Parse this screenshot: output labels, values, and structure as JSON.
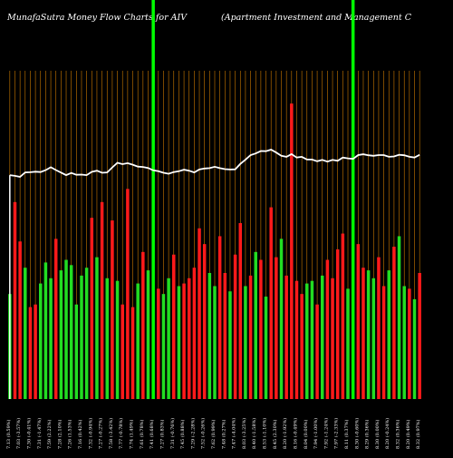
{
  "chart_data": {
    "type": "bar",
    "title": "MunafaSutra  Money Flow  Charts for AIV",
    "subtitle": "(Apartment Investment and Management C",
    "xlabel": "",
    "ylabel": "",
    "grid": true,
    "categories": [
      "7.13 (0.59%)",
      "7.09 (0.81%)",
      "7.03 (-3.57%)",
      "7.29 (-0.14%)",
      "7.30 (-0.41%)",
      "7.33 (0.27%)",
      "7.31 (-1.47%)",
      "7.42 (-2.28%)",
      "7.59 (2.22%)",
      "7.43 (1.97%)",
      "7.28 (2.10%)",
      "7.13 (-1.79%)",
      "7.26 (1.53%)",
      "7.15 (-0.14%)",
      "7.16 (0.42%)",
      "7.13 (-2.56%)",
      "7.32 (-0.94%)",
      "7.39 (1.65%)",
      "7.27 (-0.27%)",
      "7.29 (-3.89%)",
      "7.58 (-3.42%)",
      "7.85 (1.09%)",
      "7.77 (-0.78%)",
      "7.83 (1.16%)",
      "7.74 (1.49%)",
      "7.63 (0.26%)",
      "7.61 (0.78%)",
      "7.55 (1.89%)",
      "7.41 (0.68%)",
      "7.36 (1.24%)",
      "7.27 (0.83%)",
      "7.21 (-1.31%)",
      "7.31 (-0.76%)",
      "7.36 (-1.21%)",
      "7.45 (0.88%)",
      "7.39 (1.37%)",
      "7.29 (-2.28%)",
      "7.46 (-0.80%)",
      "7.52 (-0.26%)",
      "7.54 (-1.05%)",
      "7.62 (0.99%)",
      "7.54 (0.80%)",
      "7.48 (0.27%)",
      "7.46 (-0.12%)",
      "7.47 (-4.04%)",
      "7.79 (-2.98%)",
      "8.03 (-3.25%)",
      "8.30 (-1.20%)",
      "8.40 (-1.58%)",
      "8.54 (0.11%)",
      "8.53 (-1.10%)",
      "8.62 (2.01%)",
      "8.45 (2.30%)",
      "8.26 (0.73%)",
      "8.20 (-1.92%)",
      "8.36 (2.45%)",
      "8.16 (-0.49%)",
      "8.20 (1.99%)",
      "8.04 (0.00%)",
      "8.04 (1.26%)",
      "7.94 (-1.00%)",
      "8.02 (1.24%)",
      "7.92 (-1.24%)",
      "8.02 (0.63%)",
      "7.97 (-2.33%)",
      "8.16 (0.62%)",
      "8.11 (0.37%)",
      "8.08 (-2.65%)",
      "8.30 (-0.60%)",
      "8.35 (0.72%)",
      "8.29 (0.36%)",
      "8.26 (-0.48%)",
      "8.30 (0.00%)",
      "8.30 (1.22%)",
      "8.20 (-0.24%)",
      "8.22 (-1.20%)",
      "8.32 (0.36%)",
      "8.29 (1.10%)",
      "8.20 (0.49%)",
      "8.16 (-1.93%)",
      "8.32 (0.97%)"
    ],
    "bar_colors": [
      "green",
      "red",
      "red",
      "green",
      "red",
      "red",
      "green",
      "green",
      "green",
      "red",
      "green",
      "green",
      "green",
      "green",
      "green",
      "green",
      "red",
      "green",
      "red",
      "green",
      "red",
      "green",
      "red",
      "red",
      "red",
      "green",
      "red",
      "green",
      "red",
      "red",
      "green",
      "green",
      "red",
      "green",
      "red",
      "red",
      "red",
      "red",
      "red",
      "green",
      "green",
      "red",
      "red",
      "green",
      "red",
      "red",
      "green",
      "red",
      "green",
      "red",
      "green",
      "red",
      "red",
      "green",
      "red",
      "green",
      "red",
      "red",
      "green",
      "green",
      "red",
      "green",
      "red",
      "red",
      "red",
      "red",
      "green",
      "green",
      "red",
      "red",
      "green",
      "green",
      "red",
      "red",
      "green",
      "red",
      "green",
      "green",
      "red",
      "green",
      "red"
    ],
    "values": [
      4.0,
      7.5,
      6.0,
      5.0,
      3.5,
      3.6,
      4.4,
      5.2,
      4.6,
      6.1,
      4.9,
      5.3,
      5.1,
      3.6,
      4.7,
      5.0,
      6.9,
      5.4,
      7.5,
      4.6,
      6.8,
      4.5,
      3.6,
      8.0,
      3.5,
      4.4,
      5.6,
      4.9,
      5.8,
      4.2,
      4.0,
      4.6,
      5.5,
      4.3,
      4.4,
      4.6,
      5.0,
      6.5,
      5.9,
      4.8,
      4.3,
      6.2,
      4.8,
      4.1,
      5.5,
      6.7,
      4.3,
      4.7,
      5.6,
      5.3,
      3.9,
      7.3,
      5.4,
      6.1,
      4.7,
      4.1,
      4.5,
      4.0,
      4.4,
      4.5,
      3.6,
      4.7,
      5.3,
      4.6,
      5.7,
      6.3,
      4.2,
      3.9,
      5.9,
      5.0,
      4.9,
      4.6,
      5.4,
      4.3,
      4.9,
      5.8,
      6.2,
      4.3,
      4.2,
      3.8,
      4.8
    ],
    "highlight_bars": [
      {
        "index": 28,
        "color": "green",
        "value": 10.0
      },
      {
        "index": 55,
        "color": "red",
        "value": 9.0
      },
      {
        "index": 67,
        "color": "green",
        "value": 10.0
      }
    ],
    "price_line": [
      7.13,
      7.09,
      7.03,
      7.29,
      7.3,
      7.33,
      7.31,
      7.42,
      7.59,
      7.43,
      7.28,
      7.13,
      7.26,
      7.15,
      7.16,
      7.13,
      7.32,
      7.39,
      7.27,
      7.29,
      7.58,
      7.85,
      7.77,
      7.83,
      7.74,
      7.63,
      7.61,
      7.55,
      7.41,
      7.36,
      7.27,
      7.21,
      7.31,
      7.36,
      7.45,
      7.39,
      7.29,
      7.46,
      7.52,
      7.54,
      7.62,
      7.54,
      7.48,
      7.46,
      7.47,
      7.79,
      8.03,
      8.3,
      8.4,
      8.54,
      8.53,
      8.62,
      8.45,
      8.26,
      8.2,
      8.36,
      8.16,
      8.2,
      8.04,
      8.04,
      7.94,
      8.02,
      7.92,
      8.02,
      7.97,
      8.16,
      8.11,
      8.08,
      8.3,
      8.35,
      8.29,
      8.26,
      8.3,
      8.3,
      8.2,
      8.22,
      8.32,
      8.29,
      8.2,
      8.16,
      8.32
    ],
    "colors": {
      "background": "#000000",
      "green": "#22dd22",
      "red": "#ff1a1a",
      "bright_green": "#00ff00",
      "grid": "#cc7a00",
      "line": "#ffffff",
      "text": "#ffffff"
    }
  }
}
